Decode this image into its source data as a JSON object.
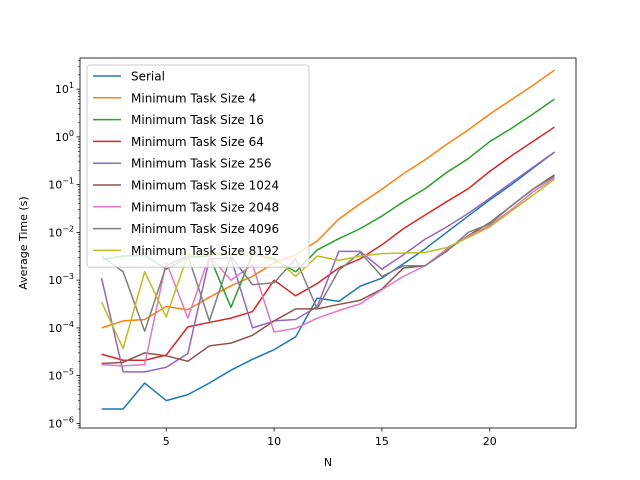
{
  "chart_data": {
    "type": "line",
    "title": "",
    "xlabel": "N",
    "ylabel": "Average Time (s)",
    "xlim": [
      1.0,
      24.0
    ],
    "ylim": [
      8e-07,
      45
    ],
    "yscale": "log",
    "grid": false,
    "legend_position": "top-left",
    "x_ticks": [
      5,
      10,
      15,
      20
    ],
    "y_ticks": [
      {
        "value": 1e-06,
        "base": "10",
        "exp": "−6"
      },
      {
        "value": 1e-05,
        "base": "10",
        "exp": "−5"
      },
      {
        "value": 0.0001,
        "base": "10",
        "exp": "−4"
      },
      {
        "value": 0.001,
        "base": "10",
        "exp": "−3"
      },
      {
        "value": 0.01,
        "base": "10",
        "exp": "−2"
      },
      {
        "value": 0.1,
        "base": "10",
        "exp": "−1"
      },
      {
        "value": 1,
        "base": "10",
        "exp": "0"
      },
      {
        "value": 10,
        "base": "10",
        "exp": "1"
      }
    ],
    "x": [
      2,
      3,
      4,
      5,
      6,
      7,
      8,
      9,
      10,
      11,
      12,
      13,
      14,
      15,
      16,
      17,
      18,
      19,
      20,
      21,
      22,
      23
    ],
    "series": [
      {
        "name": "Serial",
        "color": "#1f77b4",
        "values": [
          2e-06,
          2e-06,
          7e-06,
          3e-06,
          4e-06,
          7e-06,
          1.3e-05,
          2.2e-05,
          3.5e-05,
          6.5e-05,
          0.00042,
          0.00036,
          0.00075,
          0.0011,
          0.0022,
          0.0045,
          0.01,
          0.022,
          0.048,
          0.1,
          0.22,
          0.48
        ]
      },
      {
        "name": "Minimum Task Size 4",
        "color": "#ff7f0e",
        "values": [
          0.0001,
          0.00014,
          0.00015,
          0.00028,
          0.00024,
          0.00044,
          0.00076,
          0.0012,
          0.0023,
          0.0034,
          0.0066,
          0.019,
          0.04,
          0.08,
          0.17,
          0.33,
          0.7,
          1.4,
          3,
          6,
          12,
          25
        ]
      },
      {
        "name": "Minimum Task Size 16",
        "color": "#2ca02c",
        "values": [
          0.0027,
          0.0032,
          0.0033,
          0.0017,
          0.003,
          0.0032,
          0.00027,
          0.0035,
          0.0027,
          0.0015,
          0.0043,
          0.0074,
          0.012,
          0.022,
          0.044,
          0.082,
          0.18,
          0.35,
          0.8,
          1.5,
          3,
          6.2
        ]
      },
      {
        "name": "Minimum Task Size 64",
        "color": "#d62728",
        "values": [
          2.8e-05,
          2.1e-05,
          2.1e-05,
          2.7e-05,
          0.000105,
          0.00013,
          0.00016,
          0.00022,
          0.001,
          0.00047,
          0.00085,
          0.0018,
          0.0028,
          0.0055,
          0.012,
          0.023,
          0.044,
          0.082,
          0.19,
          0.4,
          0.8,
          1.6
        ]
      },
      {
        "name": "Minimum Task Size 256",
        "color": "#9467bd",
        "values": [
          0.0011,
          1.2e-05,
          1.2e-05,
          1.5e-05,
          2.9e-05,
          0.0028,
          0.0029,
          0.0001,
          0.00014,
          0.00015,
          0.00028,
          0.004,
          0.004,
          0.0017,
          0.0034,
          0.0072,
          0.013,
          0.025,
          0.052,
          0.11,
          0.23,
          0.48
        ]
      },
      {
        "name": "Minimum Task Size 1024",
        "color": "#8c564b",
        "values": [
          1.8e-05,
          1.9e-05,
          3e-05,
          2.6e-05,
          2e-05,
          4.2e-05,
          4.8e-05,
          7e-05,
          0.00014,
          0.00025,
          0.00025,
          0.00031,
          0.00038,
          0.00065,
          0.0018,
          0.002,
          0.0042,
          0.0085,
          0.016,
          0.036,
          0.08,
          0.16
        ]
      },
      {
        "name": "Minimum Task Size 2048",
        "color": "#e377c2",
        "values": [
          1.7e-05,
          1.6e-05,
          1.7e-05,
          0.0024,
          0.00016,
          0.0032,
          0.001,
          0.0021,
          8.2e-05,
          9.8e-05,
          0.00016,
          0.00023,
          0.00032,
          0.00063,
          0.0012,
          0.002,
          0.0045,
          0.0082,
          0.014,
          0.03,
          0.07,
          0.14
        ]
      },
      {
        "name": "Minimum Task Size 4096",
        "color": "#7f7f7f",
        "values": [
          0.0032,
          0.0015,
          8.5e-05,
          0.002,
          0.0033,
          0.00014,
          0.0032,
          0.0008,
          0.00088,
          0.0028,
          0.00025,
          0.0016,
          0.0038,
          0.0012,
          0.002,
          0.002,
          0.004,
          0.01,
          0.015,
          0.036,
          0.08,
          0.15
        ]
      },
      {
        "name": "Minimum Task Size 8192",
        "color": "#bcbd22",
        "values": [
          0.00035,
          3.7e-05,
          0.0015,
          0.00017,
          0.0034,
          0.0034,
          0.0034,
          0.0033,
          0.003,
          0.0012,
          0.0032,
          0.0026,
          0.0032,
          0.0036,
          0.0037,
          0.0038,
          0.0048,
          0.0078,
          0.013,
          0.028,
          0.06,
          0.13
        ]
      }
    ]
  }
}
